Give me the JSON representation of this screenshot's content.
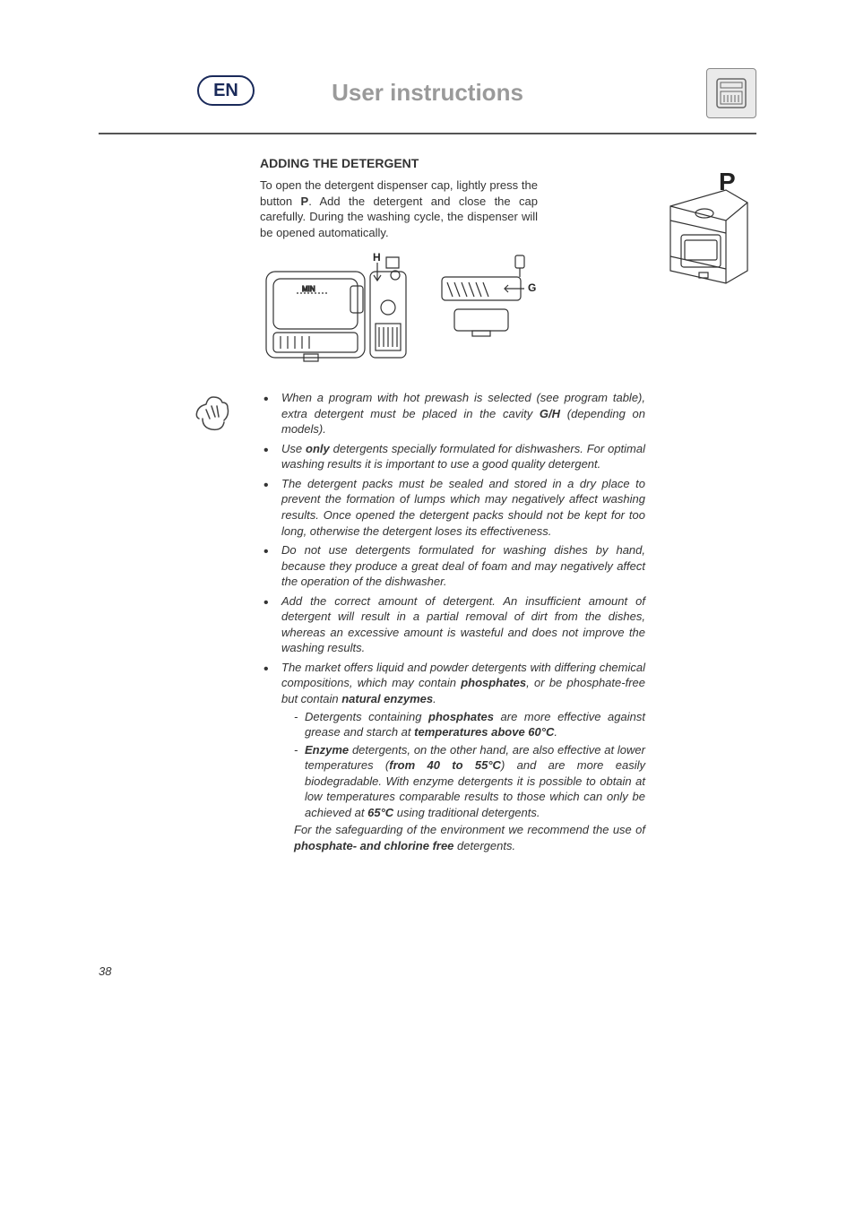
{
  "header": {
    "language_code": "EN",
    "title": "User instructions",
    "icon_name": "dishwasher-manual-icon"
  },
  "colors": {
    "title_gray": "#9a9a9a",
    "badge_border": "#1a2a5a",
    "rule": "#555555",
    "body_text": "#333333",
    "background": "#ffffff",
    "fig_stroke": "#333333"
  },
  "section": {
    "heading": "ADDING THE DETERGENT",
    "intro_pre": "To open the detergent dispenser cap, lightly press the button ",
    "intro_bold": "P",
    "intro_post": ". Add the detergent and close the cap carefully. During the washing cycle, the dispenser will be opened automatically.",
    "fig_labels": {
      "H": "H",
      "G": "G",
      "P": "P",
      "min": "MIN"
    }
  },
  "notes": [
    {
      "runs": [
        {
          "t": "When a program with hot prewash is selected (see program table), extra detergent must be placed in the cavity "
        },
        {
          "t": "G/H",
          "bold": true
        },
        {
          "t": " (depending on models)."
        }
      ]
    },
    {
      "runs": [
        {
          "t": "Use "
        },
        {
          "t": "only",
          "bold": true
        },
        {
          "t": " detergents specially formulated for dishwashers. For optimal washing results it is important to use a good quality detergent."
        }
      ]
    },
    {
      "runs": [
        {
          "t": "The detergent packs must be sealed and stored in a dry place to prevent the formation of lumps which may negatively affect washing results. Once opened the detergent packs should not be kept for too long, otherwise the detergent loses its effectiveness."
        }
      ]
    },
    {
      "runs": [
        {
          "t": "Do not use detergents formulated for washing dishes by hand, because they produce a great deal of foam and may negatively affect the operation of the dishwasher."
        }
      ]
    },
    {
      "runs": [
        {
          "t": "Add the correct amount of detergent. An insufficient amount of detergent will result in a partial removal of dirt from the dishes, whereas an excessive amount is wasteful and does not improve the washing results."
        }
      ]
    },
    {
      "runs": [
        {
          "t": "The market offers liquid and powder detergents with differing chemical compositions, which may contain "
        },
        {
          "t": "phosphates",
          "bold": true
        },
        {
          "t": ", or be phosphate-free but contain "
        },
        {
          "t": "natural enzymes",
          "bold": true
        },
        {
          "t": "."
        }
      ],
      "sub": [
        {
          "runs": [
            {
              "t": "Detergents containing "
            },
            {
              "t": "phosphates",
              "bold": true
            },
            {
              "t": " are more effective against grease and starch at "
            },
            {
              "t": "temperatures above 60°C",
              "bold": true
            },
            {
              "t": "."
            }
          ]
        },
        {
          "runs": [
            {
              "t": "Enzyme",
              "bold": true
            },
            {
              "t": " detergents, on the other hand, are also effective at lower temperatures ("
            },
            {
              "t": "from 40 to 55°C",
              "bold": true
            },
            {
              "t": ") and are more easily biodegradable. With enzyme detergents it is possible to obtain at low temperatures comparable results to those which can only be achieved at "
            },
            {
              "t": "65°C",
              "bold": true
            },
            {
              "t": " using traditional detergents."
            }
          ]
        }
      ],
      "trailing": {
        "runs": [
          {
            "t": "For the safeguarding of the environment we recommend the use of "
          },
          {
            "t": "phosphate- and chlorine free",
            "bold": true
          },
          {
            "t": " detergents."
          }
        ]
      }
    }
  ],
  "page_number": "38"
}
